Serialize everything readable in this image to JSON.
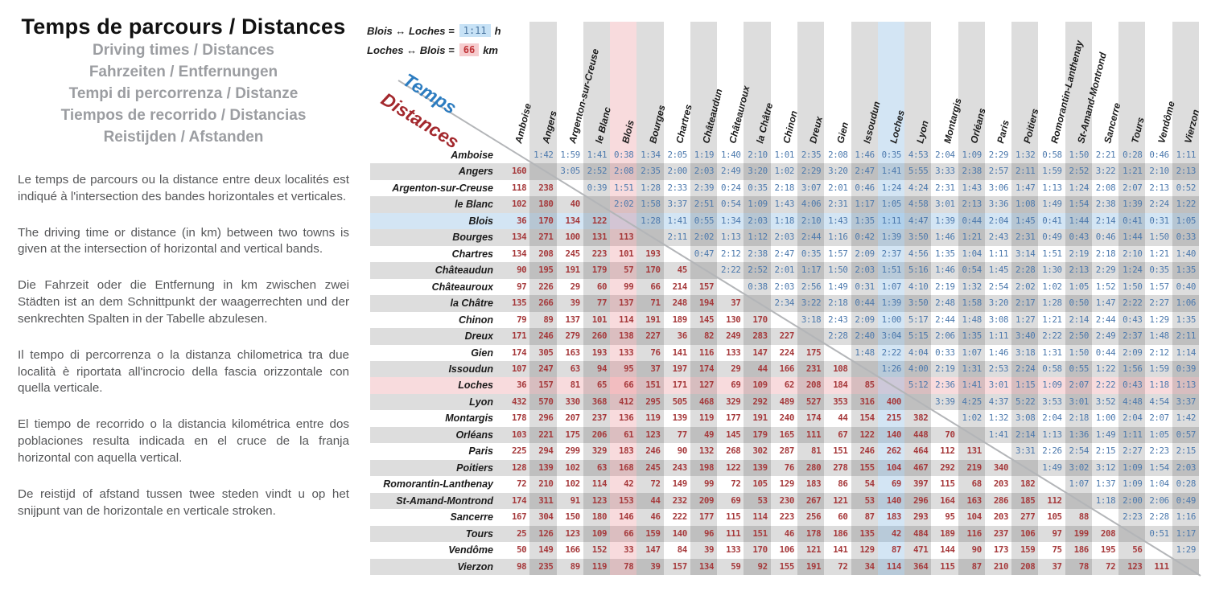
{
  "left_panel": {
    "title": "Temps de parcours / Distances",
    "subtitles": [
      "Driving times / Distances",
      "Fahrzeiten / Entfernungen",
      "Tempi di percorrenza / Distanze",
      "Tiempos de recorrido / Distancias",
      "Reistijden / Afstanden"
    ],
    "paragraphs": [
      "Le temps de parcours ou la distance entre deux localités est indiqué à l'intersection des bandes horizontales et verticales.",
      "The driving time or distance (in km) between two towns is given at the intersection of horizontal and vertical bands.",
      "Die Fahrzeit oder die Entfernung in km zwischen zwei Städten ist an dem Schnittpunkt der waagerrechten und der senkrechten Spalten in der Tabelle abzulesen.",
      "Il tempo di percorrenza o la distanza chilometrica tra due località è riportata all'incrocio della fascia orizzontale con quella verticale.",
      "El tiempo de recorrido o la distancia kilométrica entre dos poblaciones resulta indicada en el cruce de la franja horizontal con aquella vertical.",
      "De reistijd of afstand tussen twee steden vindt u op het snijpunt van de horizontale en verticale stroken."
    ]
  },
  "legend": {
    "time_label": "Blois ↔ Loches =",
    "time_value": "1:11",
    "time_unit": "h",
    "distance_label": "Loches ↔ Blois =",
    "distance_value": "66",
    "distance_unit": "km"
  },
  "axis": {
    "time_label": "Temps",
    "distance_label": "Distances"
  },
  "colors": {
    "time_text": "#4c79ad",
    "distance_text": "#a63a3c",
    "band_gray": "#d9d9d9",
    "highlight_blue": "#cfe5f5",
    "highlight_pink": "#f3ced1",
    "subtitle_gray": "#9b9da1",
    "temps_blue": "#2c7cc0",
    "distances_red": "#a3282d"
  },
  "chart_data": {
    "type": "table",
    "description": "City-to-city matrix: upper-right triangle = driving times (h:mm, blue), lower-left triangle = distances (km, red).",
    "cities": [
      "Amboise",
      "Angers",
      "Argenton-sur-Creuse",
      "le Blanc",
      "Blois",
      "Bourges",
      "Chartres",
      "Châteaudun",
      "Châteauroux",
      "la Châtre",
      "Chinon",
      "Dreux",
      "Gien",
      "Issoudun",
      "Loches",
      "Lyon",
      "Montargis",
      "Orléans",
      "Paris",
      "Poitiers",
      "Romorantin-Lanthenay",
      "St-Amand-Montrond",
      "Sancerre",
      "Tours",
      "Vendôme",
      "Vierzon"
    ],
    "highlight": {
      "time_route": [
        "Blois",
        "Loches"
      ],
      "distance_route": [
        "Loches",
        "Blois"
      ]
    },
    "rows": [
      {
        "city": "Amboise",
        "distances": [],
        "times": [
          "1:42",
          "1:59",
          "1:41",
          "0:38",
          "1:34",
          "2:05",
          "1:19",
          "1:40",
          "2:10",
          "1:01",
          "2:35",
          "2:08",
          "1:46",
          "0:35",
          "4:53",
          "2:04",
          "1:09",
          "2:29",
          "1:32",
          "0:58",
          "1:50",
          "2:21",
          "0:28",
          "0:46",
          "1:11"
        ]
      },
      {
        "city": "Angers",
        "distances": [
          160
        ],
        "times": [
          "3:05",
          "2:52",
          "2:08",
          "2:35",
          "2:00",
          "2:03",
          "2:49",
          "3:20",
          "1:02",
          "2:29",
          "3:20",
          "2:47",
          "1:41",
          "5:55",
          "3:33",
          "2:38",
          "2:57",
          "2:11",
          "1:59",
          "2:52",
          "3:22",
          "1:21",
          "2:10",
          "2:13"
        ]
      },
      {
        "city": "Argenton-sur-Creuse",
        "distances": [
          118,
          238
        ],
        "times": [
          "0:39",
          "1:51",
          "1:28",
          "2:33",
          "2:39",
          "0:24",
          "0:35",
          "2:18",
          "3:07",
          "2:01",
          "0:46",
          "1:24",
          "4:24",
          "2:31",
          "1:43",
          "3:06",
          "1:47",
          "1:13",
          "1:24",
          "2:08",
          "2:07",
          "2:13",
          "0:52"
        ]
      },
      {
        "city": "le Blanc",
        "distances": [
          102,
          180,
          40
        ],
        "times": [
          "2:02",
          "1:58",
          "3:37",
          "2:51",
          "0:54",
          "1:09",
          "1:43",
          "4:06",
          "2:31",
          "1:17",
          "1:05",
          "4:58",
          "3:01",
          "2:13",
          "3:36",
          "1:08",
          "1:49",
          "1:54",
          "2:38",
          "1:39",
          "2:24",
          "1:22"
        ]
      },
      {
        "city": "Blois",
        "distances": [
          36,
          170,
          134,
          122
        ],
        "times": [
          "1:28",
          "1:41",
          "0:55",
          "1:34",
          "2:03",
          "1:18",
          "2:10",
          "1:43",
          "1:35",
          "1:11",
          "4:47",
          "1:39",
          "0:44",
          "2:04",
          "1:45",
          "0:41",
          "1:44",
          "2:14",
          "0:41",
          "0:31",
          "1:05"
        ]
      },
      {
        "city": "Bourges",
        "distances": [
          134,
          271,
          100,
          131,
          113
        ],
        "times": [
          "2:11",
          "2:02",
          "1:13",
          "1:12",
          "2:03",
          "2:44",
          "1:16",
          "0:42",
          "1:39",
          "3:50",
          "1:46",
          "1:21",
          "2:43",
          "2:31",
          "0:49",
          "0:43",
          "0:46",
          "1:44",
          "1:50",
          "0:33"
        ]
      },
      {
        "city": "Chartres",
        "distances": [
          134,
          208,
          245,
          223,
          101,
          193
        ],
        "times": [
          "0:47",
          "2:12",
          "2:38",
          "2:47",
          "0:35",
          "1:57",
          "2:09",
          "2:37",
          "4:56",
          "1:35",
          "1:04",
          "1:11",
          "3:14",
          "1:51",
          "2:19",
          "2:18",
          "2:10",
          "1:21",
          "1:40"
        ]
      },
      {
        "city": "Châteaudun",
        "distances": [
          90,
          195,
          191,
          179,
          57,
          170,
          45
        ],
        "times": [
          "2:22",
          "2:52",
          "2:01",
          "1:17",
          "1:50",
          "2:03",
          "1:51",
          "5:16",
          "1:46",
          "0:54",
          "1:45",
          "2:28",
          "1:30",
          "2:13",
          "2:29",
          "1:24",
          "0:35",
          "1:35"
        ]
      },
      {
        "city": "Châteauroux",
        "distances": [
          97,
          226,
          29,
          60,
          99,
          66,
          214,
          157
        ],
        "times": [
          "0:38",
          "2:03",
          "2:56",
          "1:49",
          "0:31",
          "1:07",
          "4:10",
          "2:19",
          "1:32",
          "2:54",
          "2:02",
          "1:02",
          "1:05",
          "1:52",
          "1:50",
          "1:57",
          "0:40"
        ]
      },
      {
        "city": "la Châtre",
        "distances": [
          135,
          266,
          39,
          77,
          137,
          71,
          248,
          194,
          37
        ],
        "times": [
          "2:34",
          "3:22",
          "2:18",
          "0:44",
          "1:39",
          "3:50",
          "2:48",
          "1:58",
          "3:20",
          "2:17",
          "1:28",
          "0:50",
          "1:47",
          "2:22",
          "2:27",
          "1:06"
        ]
      },
      {
        "city": "Chinon",
        "distances": [
          79,
          89,
          137,
          101,
          114,
          191,
          189,
          145,
          130,
          170
        ],
        "times": [
          "3:18",
          "2:43",
          "2:09",
          "1:00",
          "5:17",
          "2:44",
          "1:48",
          "3:08",
          "1:27",
          "1:21",
          "2:14",
          "2:44",
          "0:43",
          "1:29",
          "1:35"
        ]
      },
      {
        "city": "Dreux",
        "distances": [
          171,
          246,
          279,
          260,
          138,
          227,
          36,
          82,
          249,
          283,
          227
        ],
        "times": [
          "2:28",
          "2:40",
          "3:04",
          "5:15",
          "2:06",
          "1:35",
          "1:11",
          "3:40",
          "2:22",
          "2:50",
          "2:49",
          "2:37",
          "1:48",
          "2:11"
        ]
      },
      {
        "city": "Gien",
        "distances": [
          174,
          305,
          163,
          193,
          133,
          76,
          141,
          116,
          133,
          147,
          224,
          175
        ],
        "times": [
          "1:48",
          "2:22",
          "4:04",
          "0:33",
          "1:07",
          "1:46",
          "3:18",
          "1:31",
          "1:50",
          "0:44",
          "2:09",
          "2:12",
          "1:14"
        ]
      },
      {
        "city": "Issoudun",
        "distances": [
          107,
          247,
          63,
          94,
          95,
          37,
          197,
          174,
          29,
          44,
          166,
          231,
          108
        ],
        "times": [
          "1:26",
          "4:00",
          "2:19",
          "1:31",
          "2:53",
          "2:24",
          "0:58",
          "0:55",
          "1:22",
          "1:56",
          "1:59",
          "0:39"
        ]
      },
      {
        "city": "Loches",
        "distances": [
          36,
          157,
          81,
          65,
          66,
          151,
          171,
          127,
          69,
          109,
          62,
          208,
          184,
          85
        ],
        "times": [
          "5:12",
          "2:36",
          "1:41",
          "3:01",
          "1:15",
          "1:09",
          "2:07",
          "2:22",
          "0:43",
          "1:18",
          "1:13"
        ]
      },
      {
        "city": "Lyon",
        "distances": [
          432,
          570,
          330,
          368,
          412,
          295,
          505,
          468,
          329,
          292,
          489,
          527,
          353,
          316,
          400
        ],
        "times": [
          "3:39",
          "4:25",
          "4:37",
          "5:22",
          "3:53",
          "3:01",
          "3:52",
          "4:48",
          "4:54",
          "3:37"
        ]
      },
      {
        "city": "Montargis",
        "distances": [
          178,
          296,
          207,
          237,
          136,
          119,
          139,
          119,
          177,
          191,
          240,
          174,
          44,
          154,
          215,
          382
        ],
        "times": [
          "1:02",
          "1:32",
          "3:08",
          "2:04",
          "2:18",
          "1:00",
          "2:04",
          "2:07",
          "1:42"
        ]
      },
      {
        "city": "Orléans",
        "distances": [
          103,
          221,
          175,
          206,
          61,
          123,
          77,
          49,
          145,
          179,
          165,
          111,
          67,
          122,
          140,
          448,
          70
        ],
        "times": [
          "1:41",
          "2:14",
          "1:13",
          "1:36",
          "1:49",
          "1:11",
          "1:05",
          "0:57"
        ]
      },
      {
        "city": "Paris",
        "distances": [
          225,
          294,
          299,
          329,
          183,
          246,
          90,
          132,
          268,
          302,
          287,
          81,
          151,
          246,
          262,
          464,
          112,
          131
        ],
        "times": [
          "3:31",
          "2:26",
          "2:54",
          "2:15",
          "2:27",
          "2:23",
          "2:15"
        ]
      },
      {
        "city": "Poitiers",
        "distances": [
          128,
          139,
          102,
          63,
          168,
          245,
          243,
          198,
          122,
          139,
          76,
          280,
          278,
          155,
          104,
          467,
          292,
          219,
          340
        ],
        "times": [
          "1:49",
          "3:02",
          "3:12",
          "1:09",
          "1:54",
          "2:03"
        ]
      },
      {
        "city": "Romorantin-Lanthenay",
        "distances": [
          72,
          210,
          102,
          114,
          42,
          72,
          149,
          99,
          72,
          105,
          129,
          183,
          86,
          54,
          69,
          397,
          115,
          68,
          203,
          182
        ],
        "times": [
          "1:07",
          "1:37",
          "1:09",
          "1:04",
          "0:28"
        ]
      },
      {
        "city": "St-Amand-Montrond",
        "distances": [
          174,
          311,
          91,
          123,
          153,
          44,
          232,
          209,
          69,
          53,
          230,
          267,
          121,
          53,
          140,
          296,
          164,
          163,
          286,
          185,
          112
        ],
        "times": [
          "1:18",
          "2:00",
          "2:06",
          "0:49"
        ]
      },
      {
        "city": "Sancerre",
        "distances": [
          167,
          304,
          150,
          180,
          146,
          46,
          222,
          177,
          115,
          114,
          223,
          256,
          60,
          87,
          183,
          293,
          95,
          104,
          203,
          277,
          105,
          88
        ],
        "times": [
          "2:23",
          "2:28",
          "1:16"
        ]
      },
      {
        "city": "Tours",
        "distances": [
          25,
          126,
          123,
          109,
          66,
          159,
          140,
          96,
          111,
          151,
          46,
          178,
          186,
          135,
          42,
          484,
          189,
          116,
          237,
          106,
          97,
          199,
          208
        ],
        "times": [
          "0:51",
          "1:17"
        ]
      },
      {
        "city": "Vendôme",
        "distances": [
          50,
          149,
          166,
          152,
          33,
          147,
          84,
          39,
          133,
          170,
          106,
          121,
          141,
          129,
          87,
          471,
          144,
          90,
          173,
          159,
          75,
          186,
          195,
          56
        ],
        "times": [
          "1:29"
        ]
      },
      {
        "city": "Vierzon",
        "distances": [
          98,
          235,
          89,
          119,
          78,
          39,
          157,
          134,
          59,
          92,
          155,
          191,
          72,
          34,
          114,
          364,
          115,
          87,
          210,
          208,
          37,
          78,
          72,
          123,
          111
        ],
        "times": []
      }
    ]
  }
}
